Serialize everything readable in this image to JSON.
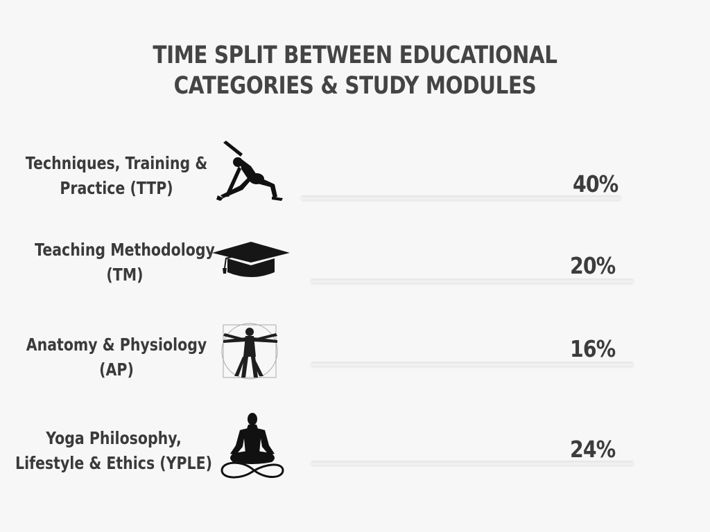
{
  "chart_data": {
    "type": "bar",
    "title": "TIME SPLIT BETWEEN EDUCATIONAL CATEGORIES & STUDY MODULES",
    "title_lines": [
      "TIME SPLIT BETWEEN EDUCATIONAL",
      "CATEGORIES & STUDY MODULES"
    ],
    "unit": "%",
    "categories": [
      {
        "lines": [
          "Techniques,  Training &",
          "Practice (TTP)"
        ],
        "icon": "yoga-stretch-pose-icon"
      },
      {
        "lines": [
          "Teaching Methodology",
          "(TM)"
        ],
        "icon": "graduation-cap-icon"
      },
      {
        "lines": [
          "Anatomy & Physiology",
          "(AP)"
        ],
        "icon": "vitruvian-man-icon"
      },
      {
        "lines": [
          "Yoga Philosophy,",
          "Lifestyle & Ethics (YPLE)"
        ],
        "icon": "meditation-lotus-pose-icon"
      }
    ],
    "values": [
      40,
      20,
      16,
      24
    ],
    "value_labels": [
      "40%",
      "20%",
      "16%",
      "24%"
    ],
    "colors": {
      "text": "#3c3c3c",
      "background": "#f7f7f7",
      "bar": "#e8e8e8"
    }
  }
}
